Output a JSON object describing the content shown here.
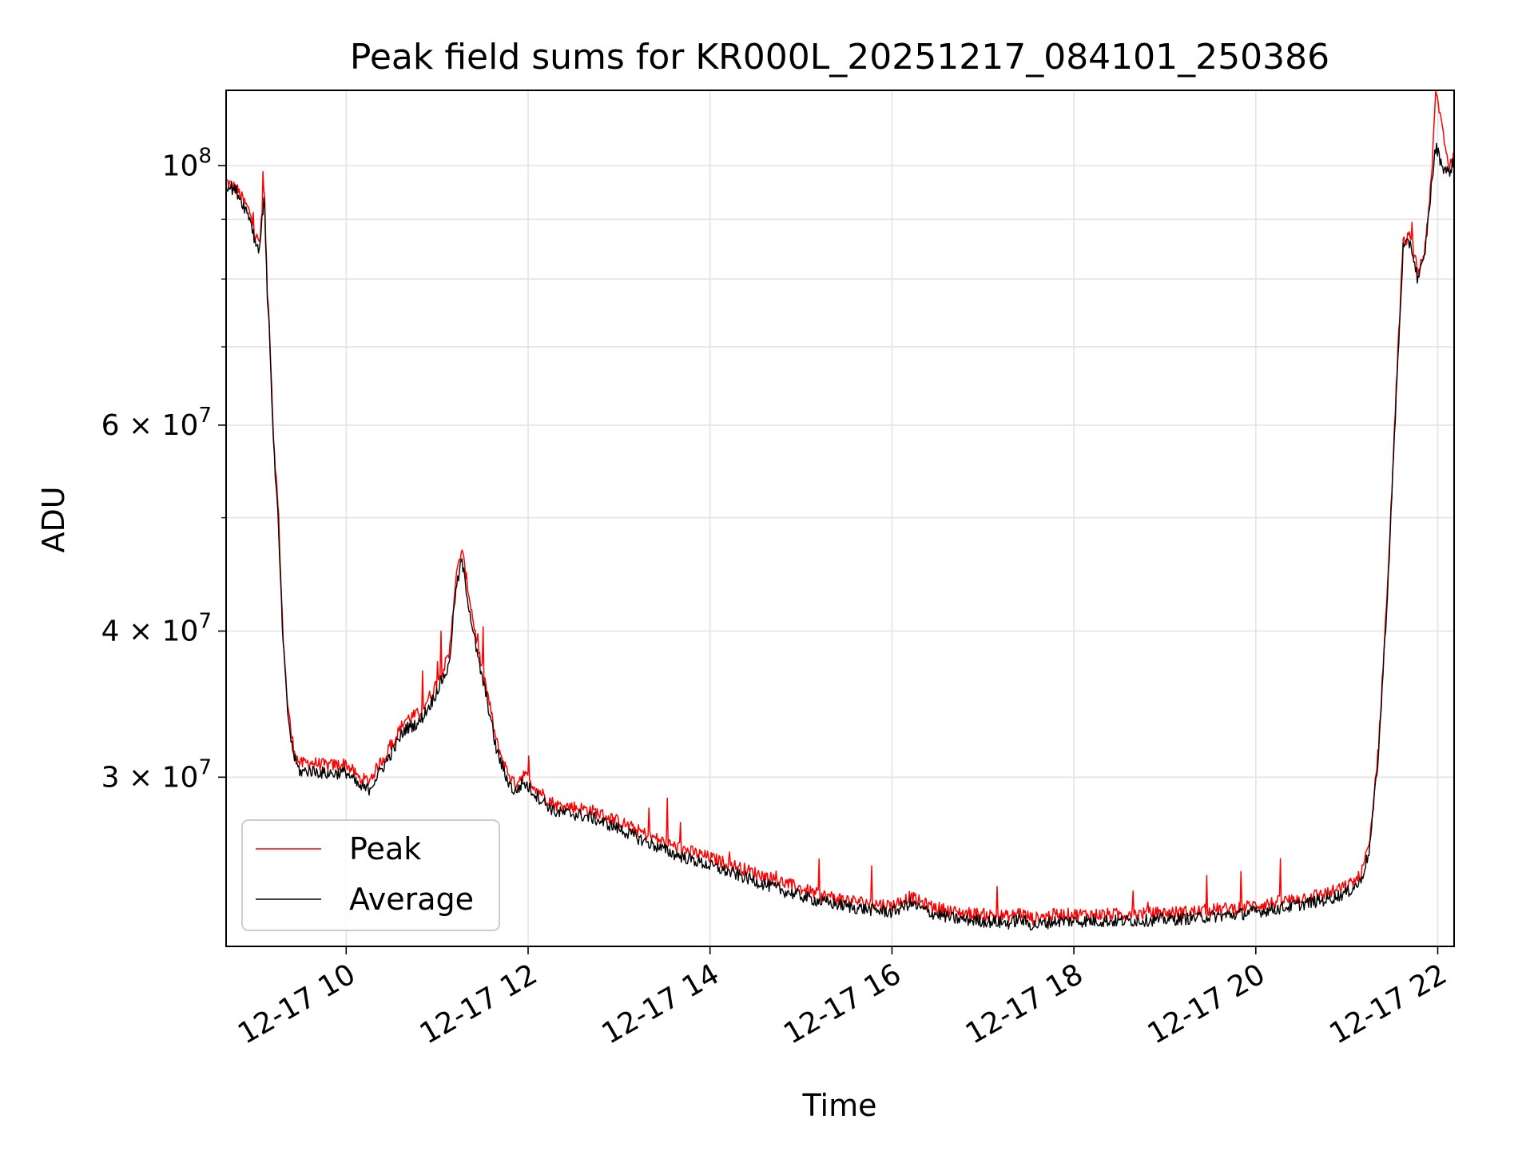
{
  "chart_data": {
    "type": "line",
    "title": "Peak field sums for KR000L_20251217_084101_250386",
    "xlabel": "Time",
    "ylabel": "ADU",
    "yscale": "log",
    "xlim_hours": [
      8.68,
      22.18
    ],
    "ylim": [
      21500000,
      116000000
    ],
    "grid": true,
    "legend_position": "lower-left",
    "x_ticks": [
      {
        "value": 10,
        "label": "12-17 10"
      },
      {
        "value": 12,
        "label": "12-17 12"
      },
      {
        "value": 14,
        "label": "12-17 14"
      },
      {
        "value": 16,
        "label": "12-17 16"
      },
      {
        "value": 18,
        "label": "12-17 18"
      },
      {
        "value": 20,
        "label": "12-17 20"
      },
      {
        "value": 22,
        "label": "12-17 22"
      }
    ],
    "y_major_ticks": [
      {
        "value": 100000000,
        "mantissa": "",
        "base": "10",
        "exp": "8"
      },
      {
        "value": 60000000,
        "mantissa": "6 × ",
        "base": "10",
        "exp": "7"
      },
      {
        "value": 40000000,
        "mantissa": "4 × ",
        "base": "10",
        "exp": "7"
      },
      {
        "value": 30000000,
        "mantissa": "3 × ",
        "base": "10",
        "exp": "7"
      }
    ],
    "y_minor_ticks": [
      50000000,
      70000000,
      80000000,
      90000000
    ],
    "series": [
      {
        "name": "Peak",
        "color": "#ff0000",
        "x": [
          8.68,
          8.8,
          8.95,
          9.0,
          9.05,
          9.1,
          9.13,
          9.16,
          9.2,
          9.25,
          9.3,
          9.35,
          9.4,
          9.45,
          9.5,
          9.6,
          9.8,
          10.0,
          10.15,
          10.25,
          10.45,
          10.65,
          10.8,
          10.95,
          11.05,
          11.13,
          11.2,
          11.27,
          11.35,
          11.45,
          11.55,
          11.65,
          11.75,
          11.85,
          11.95,
          12.1,
          12.3,
          12.5,
          12.7,
          13.0,
          13.3,
          13.6,
          14.0,
          14.4,
          14.8,
          15.2,
          15.6,
          16.0,
          16.2,
          16.4,
          16.7,
          17.0,
          17.3,
          17.4,
          17.55,
          17.8,
          18.5,
          19.2,
          19.8,
          20.3,
          20.8,
          21.0,
          21.15,
          21.25,
          21.35,
          21.45,
          21.55,
          21.62,
          21.7,
          21.78,
          21.85,
          21.93,
          21.98,
          22.05,
          22.12,
          22.18
        ],
        "y": [
          97000000,
          95500000,
          91000000,
          87000000,
          86000000,
          96000000,
          79000000,
          72000000,
          59000000,
          51000000,
          40500000,
          35000000,
          32500000,
          31200000,
          30800000,
          30900000,
          30700000,
          30800000,
          29900000,
          29800000,
          31500000,
          33600000,
          34000000,
          35500000,
          37000000,
          38000000,
          44000000,
          47000000,
          43000000,
          38500000,
          35500000,
          32200000,
          30600000,
          29600000,
          30200000,
          29300000,
          28400000,
          28300000,
          28100000,
          27500000,
          26800000,
          26200000,
          25600000,
          25000000,
          24400000,
          23800000,
          23500000,
          23300000,
          23700000,
          23300000,
          23000000,
          22900000,
          22800000,
          23000000,
          22700000,
          22900000,
          22900000,
          23000000,
          23200000,
          23500000,
          23900000,
          24200000,
          24700000,
          26300000,
          32000000,
          44000000,
          66000000,
          86000000,
          87000000,
          81000000,
          84000000,
          97000000,
          116000000,
          108000000,
          100000000,
          101500000
        ]
      },
      {
        "name": "Average",
        "color": "#000000",
        "x": [
          8.68,
          8.8,
          8.95,
          9.0,
          9.05,
          9.1,
          9.13,
          9.16,
          9.2,
          9.25,
          9.3,
          9.35,
          9.4,
          9.45,
          9.5,
          9.6,
          9.8,
          10.0,
          10.15,
          10.25,
          10.45,
          10.65,
          10.8,
          10.95,
          11.05,
          11.13,
          11.2,
          11.27,
          11.35,
          11.45,
          11.55,
          11.65,
          11.75,
          11.85,
          11.95,
          12.1,
          12.3,
          12.5,
          12.7,
          13.0,
          13.3,
          13.6,
          14.0,
          14.4,
          14.8,
          15.2,
          15.6,
          16.0,
          16.2,
          16.4,
          16.7,
          17.0,
          17.3,
          17.4,
          17.55,
          17.8,
          18.5,
          19.2,
          19.8,
          20.3,
          20.8,
          21.0,
          21.15,
          21.25,
          21.35,
          21.45,
          21.55,
          21.62,
          21.7,
          21.78,
          21.85,
          21.93,
          21.98,
          22.05,
          22.12,
          22.18
        ],
        "y": [
          96500000,
          95000000,
          90000000,
          86000000,
          85000000,
          95000000,
          78000000,
          71000000,
          58000000,
          50000000,
          40000000,
          34500000,
          32000000,
          30800000,
          30300000,
          30400000,
          30200000,
          30300000,
          29400000,
          29300000,
          31000000,
          33000000,
          33400000,
          34900000,
          36300000,
          37300000,
          43000000,
          46000000,
          42000000,
          37800000,
          34900000,
          31700000,
          30100000,
          29100000,
          29700000,
          28900000,
          28000000,
          27900000,
          27700000,
          27100000,
          26400000,
          25800000,
          25200000,
          24600000,
          24000000,
          23500000,
          23200000,
          23000000,
          23400000,
          23000000,
          22700000,
          22600000,
          22500000,
          22700000,
          22400000,
          22600000,
          22600000,
          22700000,
          22900000,
          23200000,
          23600000,
          23900000,
          24400000,
          26000000,
          31500000,
          43500000,
          65000000,
          85000000,
          86000000,
          80000000,
          83000000,
          96000000,
          104000000,
          100000000,
          98500000,
          101000000
        ]
      }
    ]
  }
}
